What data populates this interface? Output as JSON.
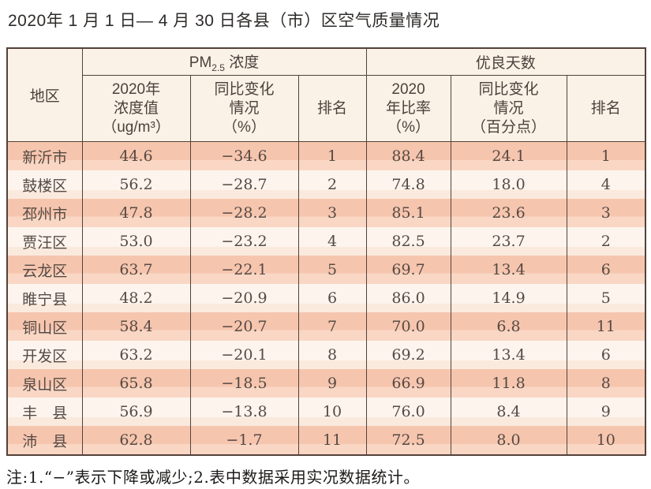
{
  "title": "2020年 1 月 1 日— 4 月 30 日各县（市）区空气质量情况",
  "note": "注:1.“−”表示下降或减少;2.表中数据采用实况数据统计。",
  "colors": {
    "border": "#54413a",
    "header_bg": "#faf2e6",
    "row_odd": "#f6c5ae",
    "row_even": "#fdf4ee",
    "text": "#554a44"
  },
  "table": {
    "headers": {
      "region": "地区",
      "pm_group_prefix": "PM",
      "pm_group_sub": "2.5",
      "pm_group_suffix": " 浓度",
      "good_days_group": "优良天数",
      "pm_value": "2020年\n浓度值\n（ug/m³）",
      "pm_change": "同比变化\n情况\n（%）",
      "pm_rank": "排名",
      "gd_ratio": "2020\n年比率\n（%）",
      "gd_change": "同比变化\n情况\n（百分点）",
      "gd_rank": "排名"
    },
    "rows": [
      {
        "region": "新沂市",
        "pm_value": "44.6",
        "pm_change": "−34.6",
        "pm_rank": "1",
        "gd_ratio": "88.4",
        "gd_change": "24.1",
        "gd_rank": "1"
      },
      {
        "region": "鼓楼区",
        "pm_value": "56.2",
        "pm_change": "−28.7",
        "pm_rank": "2",
        "gd_ratio": "74.8",
        "gd_change": "18.0",
        "gd_rank": "4"
      },
      {
        "region": "邳州市",
        "pm_value": "47.8",
        "pm_change": "−28.2",
        "pm_rank": "3",
        "gd_ratio": "85.1",
        "gd_change": "23.6",
        "gd_rank": "3"
      },
      {
        "region": "贾汪区",
        "pm_value": "53.0",
        "pm_change": "−23.2",
        "pm_rank": "4",
        "gd_ratio": "82.5",
        "gd_change": "23.7",
        "gd_rank": "2"
      },
      {
        "region": "云龙区",
        "pm_value": "63.7",
        "pm_change": "−22.1",
        "pm_rank": "5",
        "gd_ratio": "69.7",
        "gd_change": "13.4",
        "gd_rank": "6"
      },
      {
        "region": "睢宁县",
        "pm_value": "48.2",
        "pm_change": "−20.9",
        "pm_rank": "6",
        "gd_ratio": "86.0",
        "gd_change": "14.9",
        "gd_rank": "5"
      },
      {
        "region": "铜山区",
        "pm_value": "58.4",
        "pm_change": "−20.7",
        "pm_rank": "7",
        "gd_ratio": "70.0",
        "gd_change": "6.8",
        "gd_rank": "11"
      },
      {
        "region": "开发区",
        "pm_value": "63.2",
        "pm_change": "−20.1",
        "pm_rank": "8",
        "gd_ratio": "69.2",
        "gd_change": "13.4",
        "gd_rank": "6"
      },
      {
        "region": "泉山区",
        "pm_value": "65.8",
        "pm_change": "−18.5",
        "pm_rank": "9",
        "gd_ratio": "66.9",
        "gd_change": "11.8",
        "gd_rank": "8"
      },
      {
        "region": "丰　县",
        "pm_value": "56.9",
        "pm_change": "−13.8",
        "pm_rank": "10",
        "gd_ratio": "76.0",
        "gd_change": "8.4",
        "gd_rank": "9"
      },
      {
        "region": "沛　县",
        "pm_value": "62.8",
        "pm_change": "−1.7",
        "pm_rank": "11",
        "gd_ratio": "72.5",
        "gd_change": "8.0",
        "gd_rank": "10"
      }
    ]
  }
}
